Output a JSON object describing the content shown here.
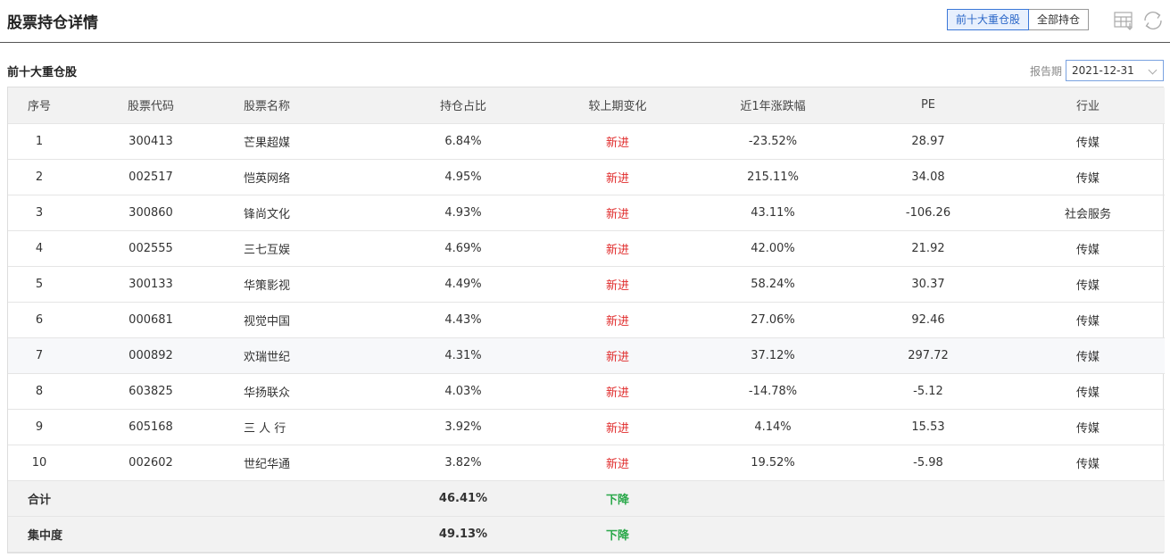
{
  "header": {
    "title": "股票持仓详情",
    "tabs": [
      "前十大重仓股",
      "全部持仓"
    ],
    "active_tab": 0
  },
  "section": {
    "title": "前十大重仓股",
    "period_label": "报告期",
    "period_value": "2021-12-31"
  },
  "table": {
    "columns": [
      "序号",
      "股票代码",
      "股票名称",
      "持仓占比",
      "较上期变化",
      "近1年涨跌幅",
      "PE",
      "行业"
    ],
    "rows": [
      {
        "no": "1",
        "code": "300413",
        "name": "芒果超媒",
        "pct": "6.84%",
        "change": "新进",
        "yoy": "-23.52%",
        "pe": "28.97",
        "industry": "传媒"
      },
      {
        "no": "2",
        "code": "002517",
        "name": "恺英网络",
        "pct": "4.95%",
        "change": "新进",
        "yoy": "215.11%",
        "pe": "34.08",
        "industry": "传媒"
      },
      {
        "no": "3",
        "code": "300860",
        "name": "锋尚文化",
        "pct": "4.93%",
        "change": "新进",
        "yoy": "43.11%",
        "pe": "-106.26",
        "industry": "社会服务"
      },
      {
        "no": "4",
        "code": "002555",
        "name": "三七互娱",
        "pct": "4.69%",
        "change": "新进",
        "yoy": "42.00%",
        "pe": "21.92",
        "industry": "传媒"
      },
      {
        "no": "5",
        "code": "300133",
        "name": "华策影视",
        "pct": "4.49%",
        "change": "新进",
        "yoy": "58.24%",
        "pe": "30.37",
        "industry": "传媒"
      },
      {
        "no": "6",
        "code": "000681",
        "name": "视觉中国",
        "pct": "4.43%",
        "change": "新进",
        "yoy": "27.06%",
        "pe": "92.46",
        "industry": "传媒"
      },
      {
        "no": "7",
        "code": "000892",
        "name": "欢瑞世纪",
        "pct": "4.31%",
        "change": "新进",
        "yoy": "37.12%",
        "pe": "297.72",
        "industry": "传媒"
      },
      {
        "no": "8",
        "code": "603825",
        "name": "华扬联众",
        "pct": "4.03%",
        "change": "新进",
        "yoy": "-14.78%",
        "pe": "-5.12",
        "industry": "传媒"
      },
      {
        "no": "9",
        "code": "605168",
        "name": "三 人 行",
        "pct": "3.92%",
        "change": "新进",
        "yoy": "4.14%",
        "pe": "15.53",
        "industry": "传媒"
      },
      {
        "no": "10",
        "code": "002602",
        "name": "世纪华通",
        "pct": "3.82%",
        "change": "新进",
        "yoy": "19.52%",
        "pe": "-5.98",
        "industry": "传媒"
      }
    ],
    "highlighted_row": 6,
    "footer": [
      {
        "label": "合计",
        "pct": "46.41%",
        "change": "下降"
      },
      {
        "label": "集中度",
        "pct": "49.13%",
        "change": "下降"
      }
    ]
  },
  "colors": {
    "new_entry": "#e02b2b",
    "decrease": "#2aa84a",
    "active_tab": "#2a66c8"
  },
  "icons": [
    "table-export-icon",
    "refresh-icon",
    "chevron-down-icon"
  ]
}
